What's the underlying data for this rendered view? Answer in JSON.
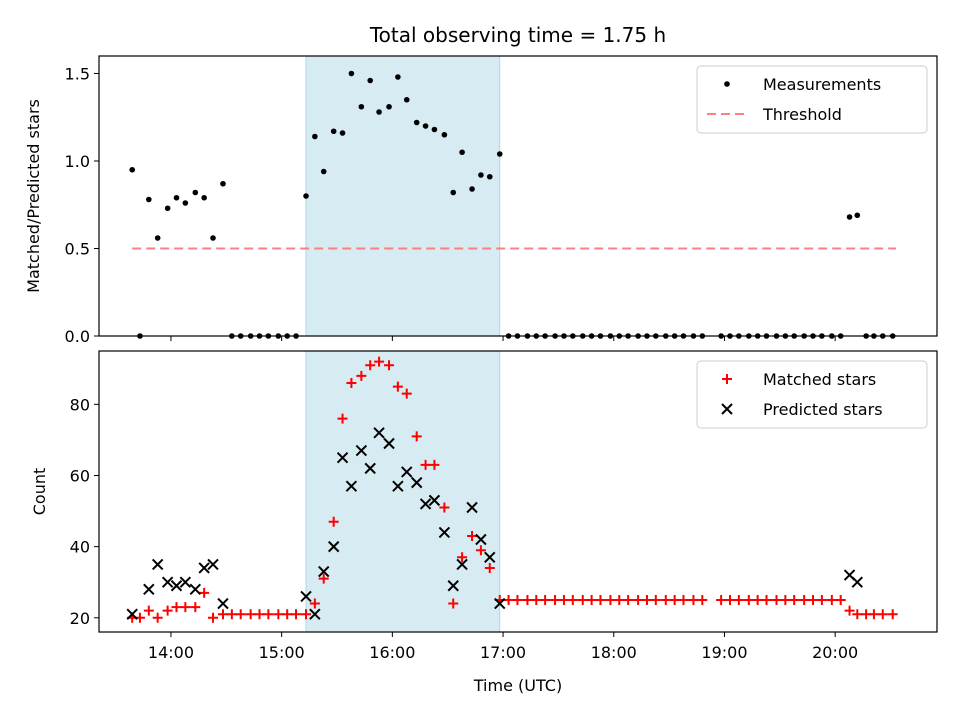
{
  "chart_data": {
    "title": "Total observing time = 1.75 h",
    "shaded_interval": {
      "x_start": 15.22,
      "x_end": 16.97,
      "color": "#add8e6"
    },
    "x_axis": {
      "label": "Time (UTC)",
      "range": [
        13.35,
        20.92
      ],
      "ticks": [
        14,
        15,
        16,
        17,
        18,
        19,
        20
      ],
      "tick_labels": [
        "14:00",
        "15:00",
        "16:00",
        "17:00",
        "18:00",
        "19:00",
        "20:00"
      ]
    },
    "panels": [
      {
        "type": "scatter",
        "ylabel": "Matched/Predicted stars",
        "ylim": [
          0,
          1.6
        ],
        "yticks": [
          0.0,
          0.5,
          1.0,
          1.5
        ],
        "ytick_labels": [
          "0.0",
          "0.5",
          "1.0",
          "1.5"
        ],
        "legend_position": "top-right",
        "series": [
          {
            "name": "Measurements",
            "marker": "dot",
            "color": "#000000",
            "points": [
              [
                13.65,
                0.95
              ],
              [
                13.72,
                0.0
              ],
              [
                13.8,
                0.78
              ],
              [
                13.88,
                0.56
              ],
              [
                13.97,
                0.73
              ],
              [
                14.05,
                0.79
              ],
              [
                14.13,
                0.76
              ],
              [
                14.22,
                0.82
              ],
              [
                14.3,
                0.79
              ],
              [
                14.38,
                0.56
              ],
              [
                14.47,
                0.87
              ],
              [
                14.55,
                0.0
              ],
              [
                14.63,
                0.0
              ],
              [
                14.72,
                0.0
              ],
              [
                14.8,
                0.0
              ],
              [
                14.88,
                0.0
              ],
              [
                14.97,
                0.0
              ],
              [
                15.05,
                0.0
              ],
              [
                15.13,
                0.0
              ],
              [
                15.22,
                0.8
              ],
              [
                15.3,
                1.14
              ],
              [
                15.38,
                0.94
              ],
              [
                15.47,
                1.17
              ],
              [
                15.55,
                1.16
              ],
              [
                15.63,
                1.5
              ],
              [
                15.72,
                1.31
              ],
              [
                15.8,
                1.46
              ],
              [
                15.88,
                1.28
              ],
              [
                15.97,
                1.31
              ],
              [
                16.05,
                1.48
              ],
              [
                16.13,
                1.35
              ],
              [
                16.22,
                1.22
              ],
              [
                16.3,
                1.2
              ],
              [
                16.38,
                1.18
              ],
              [
                16.47,
                1.15
              ],
              [
                16.55,
                0.82
              ],
              [
                16.63,
                1.05
              ],
              [
                16.72,
                0.84
              ],
              [
                16.8,
                0.92
              ],
              [
                16.88,
                0.91
              ],
              [
                16.97,
                1.04
              ],
              [
                17.05,
                0.0
              ],
              [
                17.13,
                0.0
              ],
              [
                17.22,
                0.0
              ],
              [
                17.3,
                0.0
              ],
              [
                17.38,
                0.0
              ],
              [
                17.47,
                0.0
              ],
              [
                17.55,
                0.0
              ],
              [
                17.63,
                0.0
              ],
              [
                17.72,
                0.0
              ],
              [
                17.8,
                0.0
              ],
              [
                17.88,
                0.0
              ],
              [
                17.97,
                0.0
              ],
              [
                18.05,
                0.0
              ],
              [
                18.13,
                0.0
              ],
              [
                18.22,
                0.0
              ],
              [
                18.3,
                0.0
              ],
              [
                18.38,
                0.0
              ],
              [
                18.47,
                0.0
              ],
              [
                18.55,
                0.0
              ],
              [
                18.63,
                0.0
              ],
              [
                18.72,
                0.0
              ],
              [
                18.8,
                0.0
              ],
              [
                18.97,
                0.0
              ],
              [
                19.05,
                0.0
              ],
              [
                19.13,
                0.0
              ],
              [
                19.22,
                0.0
              ],
              [
                19.3,
                0.0
              ],
              [
                19.38,
                0.0
              ],
              [
                19.47,
                0.0
              ],
              [
                19.55,
                0.0
              ],
              [
                19.63,
                0.0
              ],
              [
                19.72,
                0.0
              ],
              [
                19.8,
                0.0
              ],
              [
                19.88,
                0.0
              ],
              [
                19.97,
                0.0
              ],
              [
                20.05,
                0.0
              ],
              [
                20.13,
                0.68
              ],
              [
                20.2,
                0.69
              ],
              [
                20.28,
                0.0
              ],
              [
                20.35,
                0.0
              ],
              [
                20.43,
                0.0
              ],
              [
                20.52,
                0.0
              ]
            ]
          },
          {
            "name": "Threshold",
            "type": "line",
            "style": "dashed",
            "color": "#ff7f7f",
            "points": [
              [
                13.65,
                0.5
              ],
              [
                20.55,
                0.5
              ]
            ]
          }
        ]
      },
      {
        "type": "scatter",
        "ylabel": "Count",
        "ylim": [
          16,
          95
        ],
        "yticks": [
          20,
          40,
          60,
          80
        ],
        "ytick_labels": [
          "20",
          "40",
          "60",
          "80"
        ],
        "legend_position": "top-right",
        "series": [
          {
            "name": "Matched stars",
            "marker": "plus",
            "color": "#ff0000",
            "points": [
              [
                13.65,
                20
              ],
              [
                13.72,
                20
              ],
              [
                13.8,
                22
              ],
              [
                13.88,
                20
              ],
              [
                13.97,
                22
              ],
              [
                14.05,
                23
              ],
              [
                14.13,
                23
              ],
              [
                14.22,
                23
              ],
              [
                14.3,
                27
              ],
              [
                14.38,
                20
              ],
              [
                14.47,
                21
              ],
              [
                14.55,
                21
              ],
              [
                14.63,
                21
              ],
              [
                14.72,
                21
              ],
              [
                14.8,
                21
              ],
              [
                14.88,
                21
              ],
              [
                14.97,
                21
              ],
              [
                15.05,
                21
              ],
              [
                15.13,
                21
              ],
              [
                15.22,
                21
              ],
              [
                15.3,
                24
              ],
              [
                15.38,
                31
              ],
              [
                15.47,
                47
              ],
              [
                15.55,
                76
              ],
              [
                15.63,
                86
              ],
              [
                15.72,
                88
              ],
              [
                15.8,
                91
              ],
              [
                15.88,
                92
              ],
              [
                15.97,
                91
              ],
              [
                16.05,
                85
              ],
              [
                16.13,
                83
              ],
              [
                16.22,
                71
              ],
              [
                16.3,
                63
              ],
              [
                16.38,
                63
              ],
              [
                16.47,
                51
              ],
              [
                16.55,
                24
              ],
              [
                16.63,
                37
              ],
              [
                16.72,
                43
              ],
              [
                16.8,
                39
              ],
              [
                16.88,
                34
              ],
              [
                16.97,
                25
              ],
              [
                17.05,
                25
              ],
              [
                17.13,
                25
              ],
              [
                17.22,
                25
              ],
              [
                17.3,
                25
              ],
              [
                17.38,
                25
              ],
              [
                17.47,
                25
              ],
              [
                17.55,
                25
              ],
              [
                17.63,
                25
              ],
              [
                17.72,
                25
              ],
              [
                17.8,
                25
              ],
              [
                17.88,
                25
              ],
              [
                17.97,
                25
              ],
              [
                18.05,
                25
              ],
              [
                18.13,
                25
              ],
              [
                18.22,
                25
              ],
              [
                18.3,
                25
              ],
              [
                18.38,
                25
              ],
              [
                18.47,
                25
              ],
              [
                18.55,
                25
              ],
              [
                18.63,
                25
              ],
              [
                18.72,
                25
              ],
              [
                18.8,
                25
              ],
              [
                18.97,
                25
              ],
              [
                19.05,
                25
              ],
              [
                19.13,
                25
              ],
              [
                19.22,
                25
              ],
              [
                19.3,
                25
              ],
              [
                19.38,
                25
              ],
              [
                19.47,
                25
              ],
              [
                19.55,
                25
              ],
              [
                19.63,
                25
              ],
              [
                19.72,
                25
              ],
              [
                19.8,
                25
              ],
              [
                19.88,
                25
              ],
              [
                19.97,
                25
              ],
              [
                20.05,
                25
              ],
              [
                20.13,
                22
              ],
              [
                20.2,
                21
              ],
              [
                20.28,
                21
              ],
              [
                20.35,
                21
              ],
              [
                20.43,
                21
              ],
              [
                20.52,
                21
              ]
            ]
          },
          {
            "name": "Predicted stars",
            "marker": "x",
            "color": "#000000",
            "points": [
              [
                13.65,
                21
              ],
              [
                13.8,
                28
              ],
              [
                13.88,
                35
              ],
              [
                13.97,
                30
              ],
              [
                14.05,
                29
              ],
              [
                14.13,
                30
              ],
              [
                14.22,
                28
              ],
              [
                14.3,
                34
              ],
              [
                14.38,
                35
              ],
              [
                14.47,
                24
              ],
              [
                15.22,
                26
              ],
              [
                15.3,
                21
              ],
              [
                15.38,
                33
              ],
              [
                15.47,
                40
              ],
              [
                15.55,
                65
              ],
              [
                15.63,
                57
              ],
              [
                15.72,
                67
              ],
              [
                15.8,
                62
              ],
              [
                15.88,
                72
              ],
              [
                15.97,
                69
              ],
              [
                16.05,
                57
              ],
              [
                16.13,
                61
              ],
              [
                16.22,
                58
              ],
              [
                16.3,
                52
              ],
              [
                16.38,
                53
              ],
              [
                16.47,
                44
              ],
              [
                16.55,
                29
              ],
              [
                16.63,
                35
              ],
              [
                16.72,
                51
              ],
              [
                16.8,
                42
              ],
              [
                16.88,
                37
              ],
              [
                16.97,
                24
              ],
              [
                20.13,
                32
              ],
              [
                20.2,
                30
              ]
            ]
          }
        ]
      }
    ]
  }
}
